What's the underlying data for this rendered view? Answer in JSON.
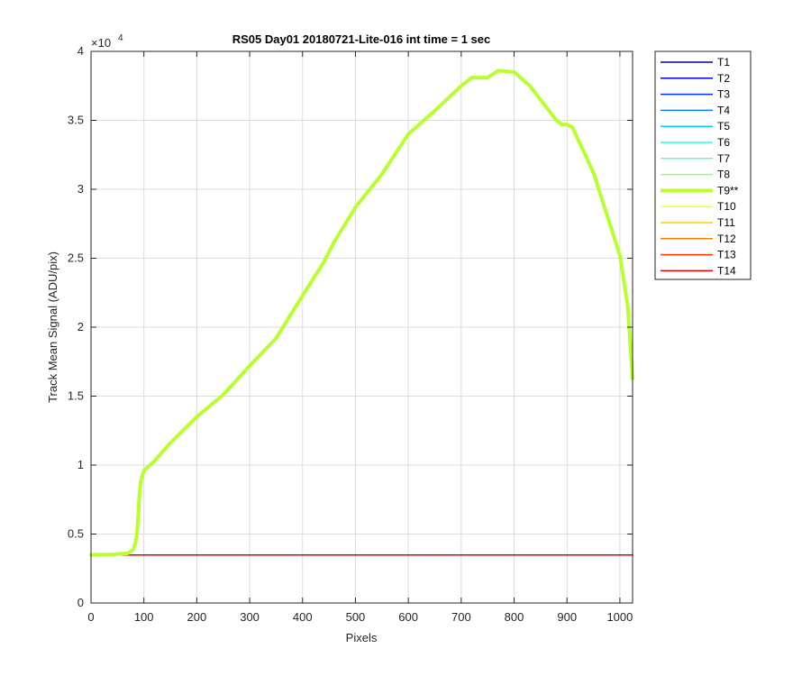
{
  "chart_data": {
    "type": "line",
    "title": "RS05 Day01 20180721-Lite-016 int time = 1 sec",
    "xlabel": "Pixels",
    "ylabel": "Track Mean Signal (ADU/pix)",
    "xlim": [
      0,
      1024
    ],
    "ylim": [
      0,
      40000
    ],
    "xticks": [
      0,
      100,
      200,
      300,
      400,
      500,
      600,
      700,
      800,
      900,
      1000
    ],
    "yticks": [
      0,
      5000,
      10000,
      15000,
      20000,
      25000,
      30000,
      35000,
      40000
    ],
    "ytick_labels": [
      "0",
      "0.5",
      "1",
      "1.5",
      "2",
      "2.5",
      "3",
      "3.5",
      "4"
    ],
    "y_exponent_base": "×10",
    "y_exponent_power": "4",
    "grid": true,
    "legend_position": "outside-top-right",
    "series": [
      {
        "name": "T1",
        "color": "#00008f",
        "x": [
          0,
          1024
        ],
        "y": [
          3480,
          3480
        ]
      },
      {
        "name": "T2",
        "color": "#0000df",
        "x": [
          0,
          1024
        ],
        "y": [
          3480,
          3480
        ]
      },
      {
        "name": "T3",
        "color": "#0030ff",
        "x": [
          0,
          1024
        ],
        "y": [
          3480,
          3480
        ]
      },
      {
        "name": "T4",
        "color": "#0080ff",
        "x": [
          0,
          1024
        ],
        "y": [
          3480,
          3480
        ]
      },
      {
        "name": "T5",
        "color": "#00cfff",
        "x": [
          0,
          1024
        ],
        "y": [
          3480,
          3480
        ]
      },
      {
        "name": "T6",
        "color": "#20ffdf",
        "x": [
          0,
          1024
        ],
        "y": [
          3480,
          3480
        ]
      },
      {
        "name": "T7",
        "color": "#60ffb0",
        "x": [
          0,
          1024
        ],
        "y": [
          3480,
          3480
        ]
      },
      {
        "name": "T8",
        "color": "#90ff70",
        "x": [
          0,
          1024
        ],
        "y": [
          3480,
          3480
        ]
      },
      {
        "name": "T9**",
        "color": "#b8ff30",
        "highlight": true,
        "x": [
          0,
          40,
          70,
          80,
          85,
          88,
          91,
          94,
          97,
          100,
          120,
          150,
          200,
          250,
          300,
          350,
          400,
          440,
          460,
          500,
          550,
          600,
          650,
          700,
          720,
          750,
          770,
          800,
          830,
          860,
          880,
          890,
          900,
          910,
          950,
          1000,
          1015,
          1024
        ],
        "y": [
          3500,
          3520,
          3600,
          3900,
          4500,
          5500,
          7500,
          8800,
          9200,
          9600,
          10300,
          11600,
          13500,
          15100,
          17200,
          19200,
          22300,
          24700,
          26200,
          28700,
          31100,
          34000,
          35700,
          37500,
          38100,
          38100,
          38600,
          38500,
          37500,
          36000,
          35000,
          34700,
          34700,
          34500,
          31200,
          25200,
          21500,
          16300
        ]
      },
      {
        "name": "T10",
        "color": "#ffff00",
        "x": [
          0,
          1024
        ],
        "y": [
          3480,
          3480
        ]
      },
      {
        "name": "T11",
        "color": "#ffcf00",
        "x": [
          0,
          1024
        ],
        "y": [
          3480,
          3480
        ]
      },
      {
        "name": "T12",
        "color": "#ff8000",
        "x": [
          0,
          1024
        ],
        "y": [
          3480,
          3480
        ]
      },
      {
        "name": "T13",
        "color": "#ff3000",
        "x": [
          0,
          1024
        ],
        "y": [
          3480,
          3480
        ]
      },
      {
        "name": "T14",
        "color": "#df0000",
        "x": [
          0,
          1024
        ],
        "y": [
          3480,
          3480
        ]
      }
    ]
  }
}
